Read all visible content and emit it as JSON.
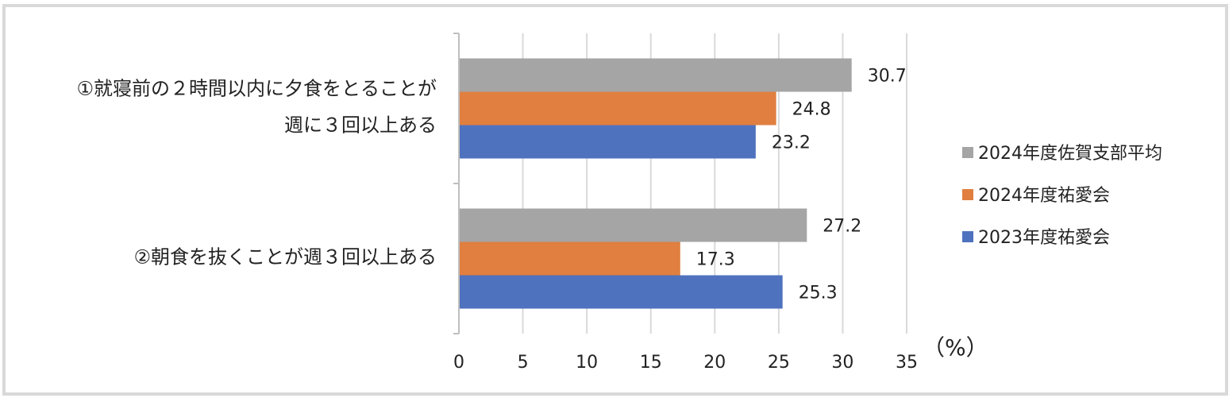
{
  "chart_data": {
    "type": "bar",
    "orientation": "horizontal",
    "categories": [
      [
        "①就寝前の２時間以内に夕食をとることが",
        "週に３回以上ある"
      ],
      [
        "②朝食を抜くことが週３回以上ある"
      ]
    ],
    "series": [
      {
        "name": "2024年度佐賀支部平均",
        "values": [
          30.7,
          27.2
        ],
        "color": "#a5a5a5"
      },
      {
        "name": "2024年度祐愛会",
        "values": [
          24.8,
          17.3
        ],
        "color": "#e07f3f"
      },
      {
        "name": "2023年度祐愛会",
        "values": [
          23.2,
          25.3
        ],
        "color": "#4f72bf"
      }
    ],
    "value_labels": {
      "s0": [
        "30.7",
        "27.2"
      ],
      "s1": [
        "24.8",
        "17.3"
      ],
      "s2": [
        "23.2",
        "25.3"
      ]
    },
    "xlim": [
      0,
      35
    ],
    "xticks": [
      "0",
      "5",
      "10",
      "15",
      "20",
      "25",
      "30",
      "35"
    ],
    "xunit": "（%）",
    "grid": true,
    "legend_position": "right",
    "legend_order": [
      "2024年度佐賀支部平均",
      "2024年度祐愛会",
      "2023年度祐愛会"
    ]
  }
}
